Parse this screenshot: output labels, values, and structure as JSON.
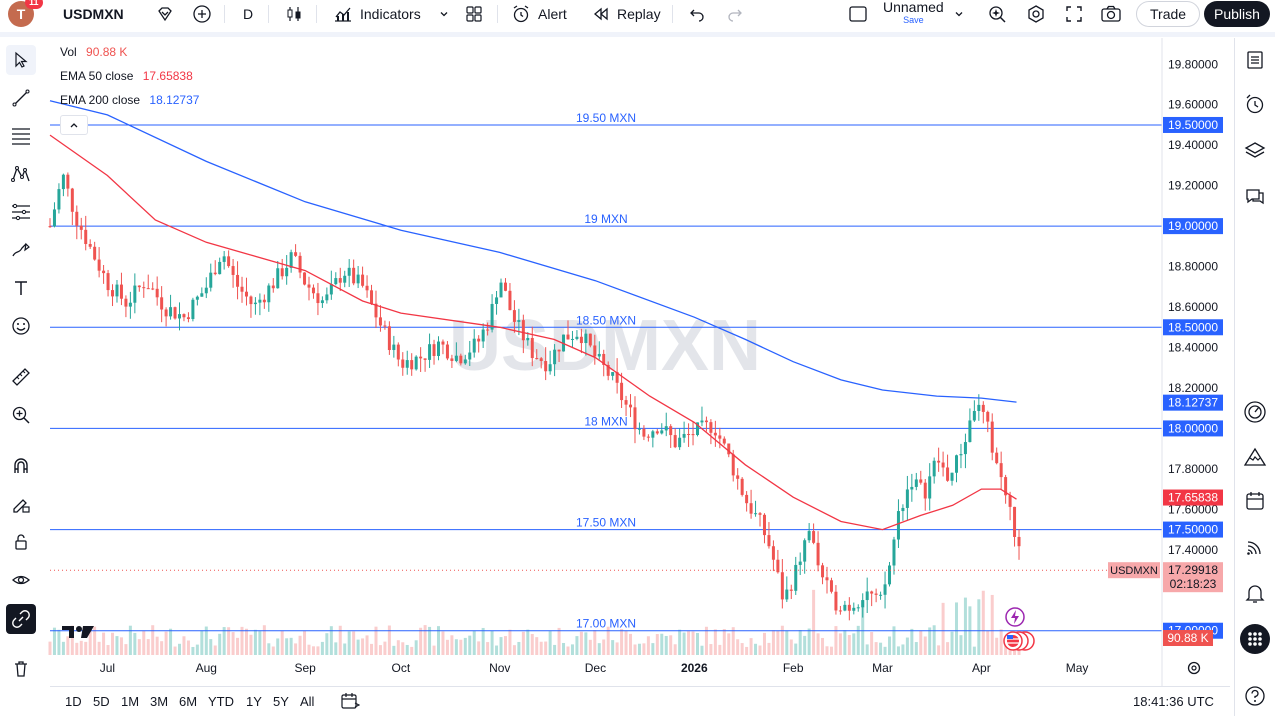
{
  "topbar": {
    "avatar_letter": "T",
    "notification_count": "11",
    "symbol": "USDMXN",
    "interval": "D",
    "indicators_label": "Indicators",
    "alert_label": "Alert",
    "replay_label": "Replay",
    "layout_name": "Unnamed",
    "layout_save": "Save",
    "trade_label": "Trade",
    "publish_label": "Publish"
  },
  "legend": {
    "vol_label": "Vol",
    "vol_value": "90.88 K",
    "ema50_label": "EMA 50 close",
    "ema50_value": "17.65838",
    "ema200_label": "EMA 200 close",
    "ema200_value": "18.12737"
  },
  "bottom": {
    "ranges": [
      "1D",
      "5D",
      "1M",
      "3M",
      "6M",
      "YTD",
      "1Y",
      "5Y",
      "All"
    ],
    "clock": "18:41:36 UTC"
  },
  "colors": {
    "up": "#26a69a",
    "down": "#ef5350",
    "ema50": "#f23645",
    "ema200": "#2962ff",
    "hline": "#2962ff",
    "vol_up": "#b2dfdb",
    "vol_down": "#facdcd",
    "price_label": "#f7a8aa"
  },
  "chart_data": {
    "type": "candlestick",
    "symbol": "USDMXN",
    "watermark": "USDMXN",
    "y_ticks": [
      "19.80000",
      "19.60000",
      "19.40000",
      "19.20000",
      "18.80000",
      "18.60000",
      "18.40000",
      "18.20000",
      "17.80000",
      "17.60000",
      "17.40000"
    ],
    "y_tick_values": [
      19.8,
      19.6,
      19.4,
      19.2,
      18.8,
      18.6,
      18.4,
      18.2,
      17.8,
      17.6,
      17.4
    ],
    "ylim": [
      16.88,
      19.92
    ],
    "x_labels": [
      "Jul",
      "Aug",
      "Sep",
      "Oct",
      "Nov",
      "Dec",
      "2026",
      "Feb",
      "Mar",
      "Apr",
      "May"
    ],
    "x_label_days": [
      0,
      31,
      62,
      92,
      123,
      153,
      184,
      215,
      243,
      274,
      304
    ],
    "horizontal_lines": [
      {
        "value": 19.5,
        "label": "19.50 MXN",
        "axis_label": "19.50000"
      },
      {
        "value": 19.0,
        "label": "19 MXN",
        "axis_label": "19.00000"
      },
      {
        "value": 18.5,
        "label": "18.50 MXN",
        "axis_label": "18.50000"
      },
      {
        "value": 18.0,
        "label": "18 MXN",
        "axis_label": "18.00000"
      },
      {
        "value": 17.5,
        "label": "17.50 MXN",
        "axis_label": "17.50000"
      },
      {
        "value": 17.0,
        "label": "17.00 MXN",
        "axis_label": "17.00000"
      }
    ],
    "axis_markers": [
      {
        "value": 18.12737,
        "text": "18.12737",
        "color": "#2962ff"
      },
      {
        "value": 17.65838,
        "text": "17.65838",
        "color": "#f23645"
      }
    ],
    "current_price": {
      "symbol": "USDMXN",
      "value": 17.29918,
      "text": "17.29918",
      "countdown": "02:18:23"
    },
    "volume_label": "90.88 K",
    "ema200": [
      [
        -18,
        19.62
      ],
      [
        0,
        19.55
      ],
      [
        31,
        19.32
      ],
      [
        62,
        19.12
      ],
      [
        92,
        18.98
      ],
      [
        123,
        18.87
      ],
      [
        153,
        18.73
      ],
      [
        184,
        18.55
      ],
      [
        200,
        18.44
      ],
      [
        215,
        18.33
      ],
      [
        230,
        18.24
      ],
      [
        243,
        18.19
      ],
      [
        260,
        18.16
      ],
      [
        274,
        18.15
      ],
      [
        285,
        18.13
      ]
    ],
    "ema50": [
      [
        -18,
        19.45
      ],
      [
        0,
        19.25
      ],
      [
        15,
        19.03
      ],
      [
        31,
        18.92
      ],
      [
        62,
        18.78
      ],
      [
        80,
        18.63
      ],
      [
        92,
        18.57
      ],
      [
        123,
        18.5
      ],
      [
        140,
        18.44
      ],
      [
        153,
        18.35
      ],
      [
        170,
        18.16
      ],
      [
        184,
        18.03
      ],
      [
        200,
        17.82
      ],
      [
        215,
        17.66
      ],
      [
        230,
        17.54
      ],
      [
        243,
        17.5
      ],
      [
        255,
        17.57
      ],
      [
        265,
        17.62
      ],
      [
        274,
        17.7
      ],
      [
        280,
        17.7
      ],
      [
        285,
        17.65
      ]
    ],
    "close_path": [
      [
        -18,
        19.0
      ],
      [
        -14,
        19.25
      ],
      [
        -10,
        19.05
      ],
      [
        -5,
        18.88
      ],
      [
        0,
        18.72
      ],
      [
        6,
        18.62
      ],
      [
        12,
        18.73
      ],
      [
        18,
        18.6
      ],
      [
        24,
        18.55
      ],
      [
        31,
        18.7
      ],
      [
        36,
        18.88
      ],
      [
        40,
        18.72
      ],
      [
        46,
        18.6
      ],
      [
        52,
        18.72
      ],
      [
        58,
        18.85
      ],
      [
        62,
        18.72
      ],
      [
        68,
        18.62
      ],
      [
        74,
        18.78
      ],
      [
        80,
        18.7
      ],
      [
        86,
        18.5
      ],
      [
        92,
        18.32
      ],
      [
        98,
        18.35
      ],
      [
        104,
        18.42
      ],
      [
        110,
        18.35
      ],
      [
        116,
        18.42
      ],
      [
        120,
        18.55
      ],
      [
        123,
        18.75
      ],
      [
        127,
        18.55
      ],
      [
        133,
        18.38
      ],
      [
        138,
        18.32
      ],
      [
        143,
        18.45
      ],
      [
        148,
        18.48
      ],
      [
        153,
        18.35
      ],
      [
        158,
        18.25
      ],
      [
        163,
        18.1
      ],
      [
        168,
        17.97
      ],
      [
        173,
        18.02
      ],
      [
        178,
        17.93
      ],
      [
        184,
        17.98
      ],
      [
        190,
        18.02
      ],
      [
        195,
        17.85
      ],
      [
        200,
        17.65
      ],
      [
        205,
        17.52
      ],
      [
        208,
        17.4
      ],
      [
        212,
        17.15
      ],
      [
        216,
        17.3
      ],
      [
        220,
        17.5
      ],
      [
        223,
        17.32
      ],
      [
        227,
        17.15
      ],
      [
        233,
        17.12
      ],
      [
        238,
        17.2
      ],
      [
        242,
        17.12
      ],
      [
        245,
        17.3
      ],
      [
        248,
        17.58
      ],
      [
        252,
        17.75
      ],
      [
        256,
        17.68
      ],
      [
        260,
        17.85
      ],
      [
        264,
        17.75
      ],
      [
        268,
        17.9
      ],
      [
        272,
        18.12
      ],
      [
        275,
        18.05
      ],
      [
        279,
        17.82
      ],
      [
        282,
        17.65
      ],
      [
        285,
        17.45
      ],
      [
        287,
        17.3
      ]
    ]
  }
}
